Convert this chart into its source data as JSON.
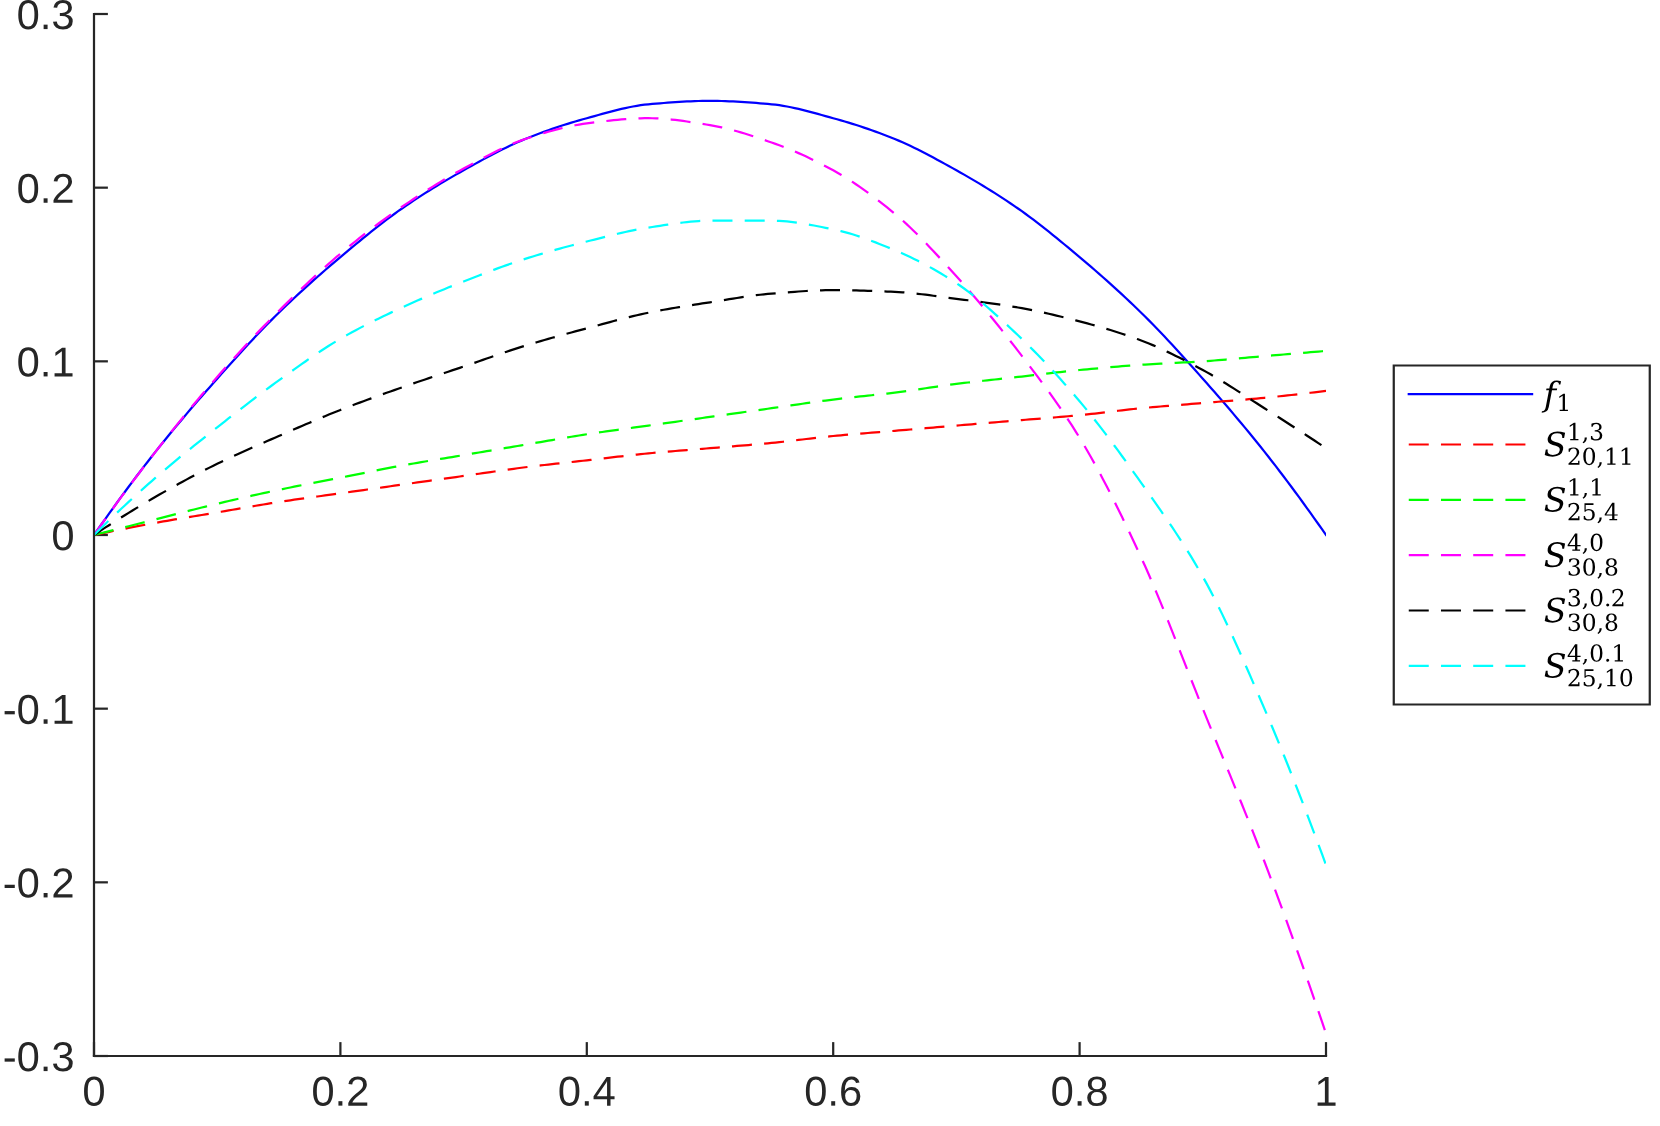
{
  "chart_data": {
    "type": "line",
    "x": [
      0,
      0.05,
      0.1,
      0.15,
      0.2,
      0.25,
      0.3,
      0.35,
      0.4,
      0.45,
      0.5,
      0.55,
      0.6,
      0.65,
      0.7,
      0.75,
      0.8,
      0.85,
      0.9,
      0.95,
      1
    ],
    "xlim": [
      0,
      1
    ],
    "xticks": [
      0,
      0.2,
      0.4,
      0.6,
      0.8,
      1
    ],
    "ylim": [
      -0.3,
      0.3
    ],
    "yticks": [
      -0.3,
      -0.2,
      -0.1,
      0,
      0.1,
      0.2,
      0.3
    ],
    "legend": "right",
    "series": [
      {
        "name": "f$_{1}$",
        "color": "#0000ff",
        "line_style": "solid",
        "values": [
          0,
          0.048,
          0.09,
          0.128,
          0.16,
          0.188,
          0.21,
          0.228,
          0.24,
          0.248,
          0.25,
          0.248,
          0.24,
          0.228,
          0.21,
          0.188,
          0.16,
          0.128,
          0.09,
          0.048,
          0
        ]
      },
      {
        "name": "S$^{1,3}$$_{20,11}$",
        "color": "#ff0000",
        "line_style": "dashed",
        "values": [
          0,
          0.007,
          0.013,
          0.019,
          0.024,
          0.029,
          0.034,
          0.039,
          0.043,
          0.047,
          0.05,
          0.053,
          0.057,
          0.06,
          0.063,
          0.066,
          0.069,
          0.073,
          0.076,
          0.079,
          0.083
        ]
      },
      {
        "name": "S$^{1,1}$$_{25,4}$",
        "color": "#00ff00",
        "line_style": "dashed",
        "values": [
          0,
          0.009,
          0.018,
          0.026,
          0.033,
          0.04,
          0.046,
          0.052,
          0.058,
          0.063,
          0.068,
          0.073,
          0.078,
          0.082,
          0.087,
          0.091,
          0.095,
          0.098,
          0.1,
          0.103,
          0.106
        ]
      },
      {
        "name": "S$^{4,0}$$_{30,8}$",
        "color": "#ff00ff",
        "line_style": "dashed",
        "values": [
          0,
          0.048,
          0.091,
          0.129,
          0.162,
          0.189,
          0.211,
          0.228,
          0.237,
          0.24,
          0.236,
          0.226,
          0.21,
          0.185,
          0.149,
          0.106,
          0.056,
          -0.013,
          -0.1,
          -0.188,
          -0.287
        ]
      },
      {
        "name": "S$^{3,0.2}$$_{30,8}$",
        "color": "#000000",
        "line_style": "dashed",
        "values": [
          0,
          0.022,
          0.041,
          0.057,
          0.072,
          0.085,
          0.097,
          0.109,
          0.119,
          0.128,
          0.134,
          0.139,
          0.141,
          0.14,
          0.136,
          0.131,
          0.123,
          0.112,
          0.095,
          0.073,
          0.05
        ]
      },
      {
        "name": "S$^{4,0.1}$$_{25,10}$",
        "color": "#00ffff",
        "line_style": "dashed",
        "values": [
          0,
          0.033,
          0.062,
          0.089,
          0.113,
          0.131,
          0.146,
          0.159,
          0.169,
          0.177,
          0.181,
          0.181,
          0.176,
          0.164,
          0.145,
          0.115,
          0.077,
          0.03,
          -0.024,
          -0.1,
          -0.19
        ]
      }
    ]
  }
}
